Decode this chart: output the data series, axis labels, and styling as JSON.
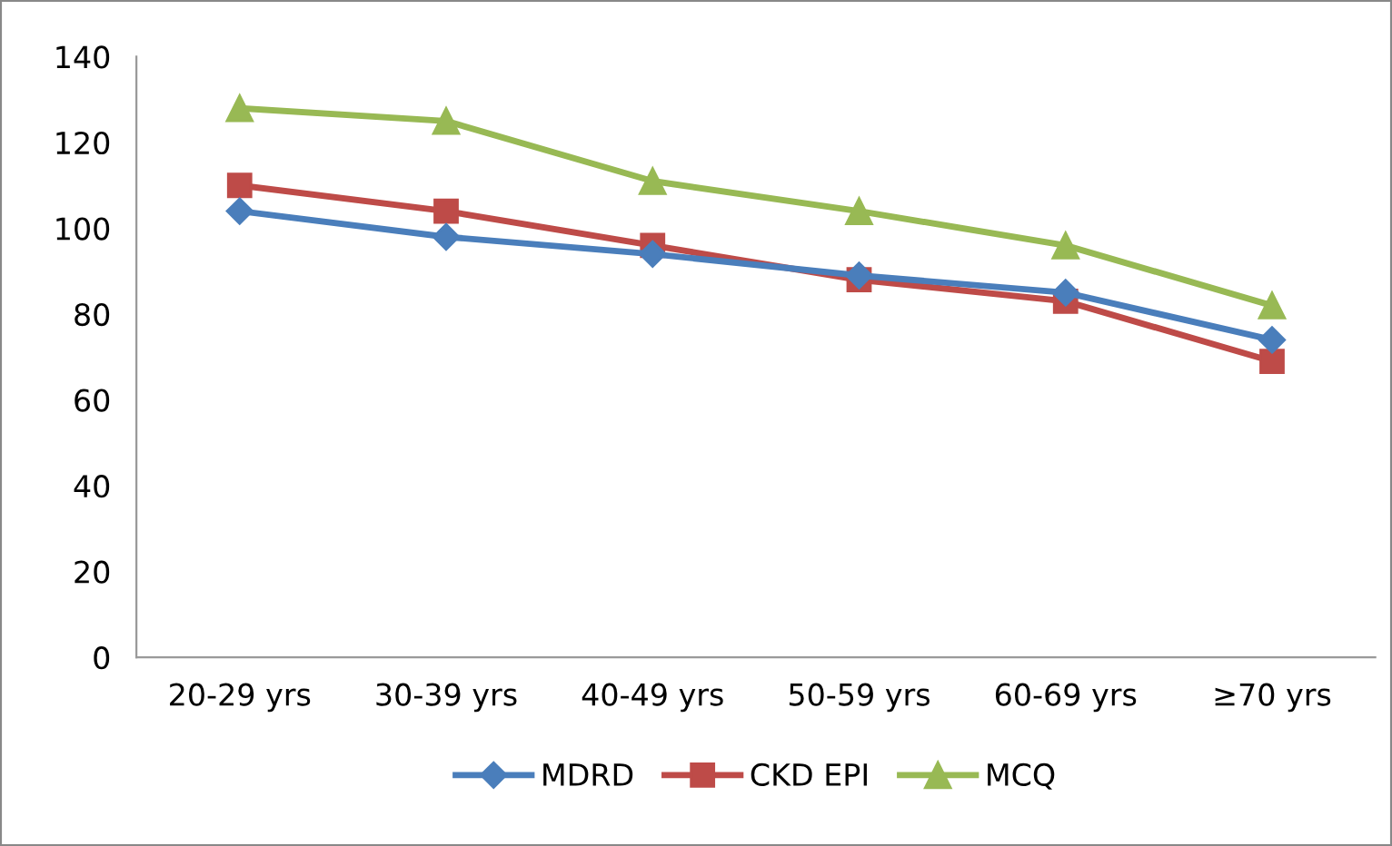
{
  "chart_data": {
    "type": "line",
    "categories": [
      "20-29 yrs",
      "30-39 yrs",
      "40-49 yrs",
      "50-59 yrs",
      "60-69 yrs",
      "≥70 yrs"
    ],
    "series": [
      {
        "name": "MDRD",
        "color": "#4a7ebb",
        "marker": "diamond",
        "values": [
          104,
          98,
          94,
          89,
          85,
          74
        ]
      },
      {
        "name": "CKD EPI",
        "color": "#be4b48",
        "marker": "square",
        "values": [
          110,
          104,
          96,
          88,
          83,
          69
        ]
      },
      {
        "name": "MCQ",
        "color": "#98b954",
        "marker": "triangle",
        "values": [
          128,
          125,
          111,
          104,
          96,
          82
        ]
      }
    ],
    "ylim": [
      0,
      140
    ],
    "yticks": [
      0,
      20,
      40,
      60,
      80,
      100,
      120,
      140
    ],
    "grid": false,
    "legend": "bottom",
    "line_style": "solid"
  }
}
